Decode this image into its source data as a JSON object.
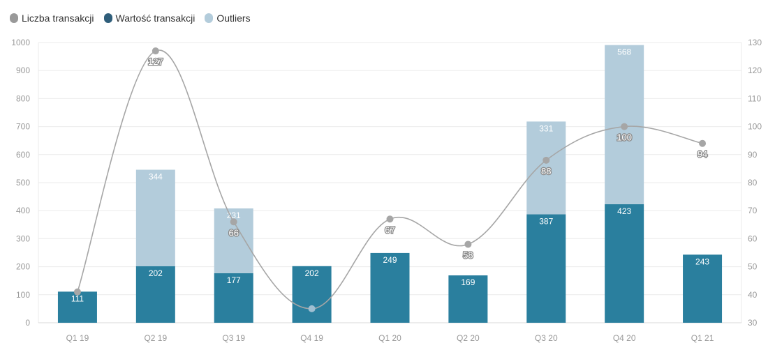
{
  "chart_data": {
    "type": "bar",
    "categories": [
      "Q1 19",
      "Q2 19",
      "Q3 19",
      "Q4 19",
      "Q1 20",
      "Q2 20",
      "Q3 20",
      "Q4 20",
      "Q1 21"
    ],
    "series": [
      {
        "name": "Wartość transakcji",
        "kind": "bar",
        "stack": "main",
        "axis": "left",
        "color": "#2a7f9e",
        "values": [
          111,
          202,
          177,
          202,
          249,
          169,
          387,
          423,
          243
        ]
      },
      {
        "name": "Outliers",
        "kind": "bar",
        "stack": "main",
        "axis": "left",
        "color": "#b3ccdb",
        "values": [
          null,
          344,
          231,
          null,
          null,
          null,
          331,
          568,
          null
        ]
      },
      {
        "name": "Liczba transakcji",
        "kind": "line",
        "axis": "right",
        "color": "#a6a6a6",
        "values": [
          41,
          127,
          66,
          35,
          67,
          58,
          88,
          100,
          94
        ]
      }
    ],
    "left_axis": {
      "min": 0,
      "max": 1000,
      "step": 100,
      "ticks": [
        "0",
        "100",
        "200",
        "300",
        "400",
        "500",
        "600",
        "700",
        "800",
        "900",
        "1000"
      ]
    },
    "right_axis": {
      "min": 30,
      "max": 130,
      "step": 10,
      "ticks": [
        "30",
        "40",
        "50",
        "60",
        "70",
        "80",
        "90",
        "100",
        "110",
        "120",
        "130"
      ]
    },
    "line_labels": [
      "",
      "127",
      "66",
      "",
      "67",
      "58",
      "88",
      "100",
      "94"
    ],
    "legend_position": "top-left",
    "grid": true
  },
  "legend": [
    {
      "label": "Liczba transakcji",
      "color": "#999999"
    },
    {
      "label": "Wartość transakcji",
      "color": "#2f5e7a"
    },
    {
      "label": "Outliers",
      "color": "#b3ccdb"
    }
  ]
}
